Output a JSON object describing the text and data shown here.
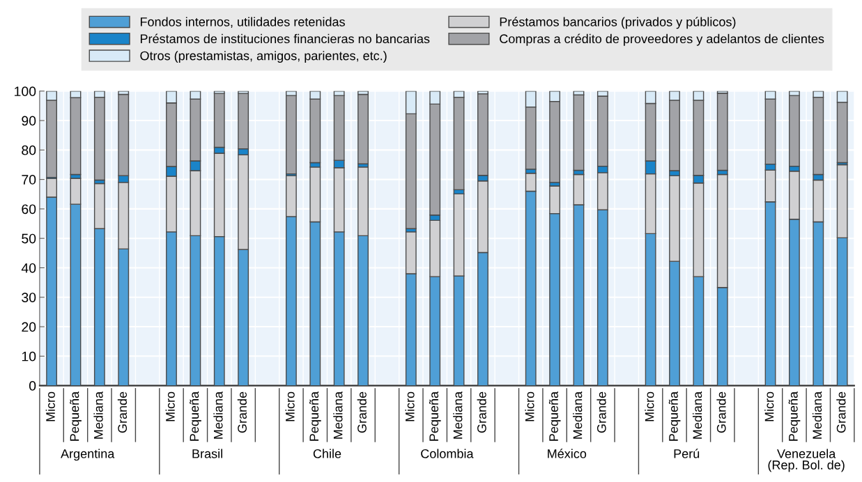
{
  "chart_data": {
    "type": "bar",
    "stacked": true,
    "categories": [
      "Micro",
      "Pequeña",
      "Mediana",
      "Grande",
      null,
      "Micro",
      "Pequeña",
      "Mediana",
      "Grande",
      null,
      "Micro",
      "Pequeña",
      "Mediana",
      "Grande",
      null,
      "Micro",
      "Pequeña",
      "Mediana",
      "Grande",
      null,
      "Micro",
      "Pequeña",
      "Mediana",
      "Grande",
      null,
      "Micro",
      "Pequeña",
      "Mediana",
      "Grande",
      null,
      "Micro",
      "Pequeña",
      "Mediana",
      "Grande"
    ],
    "series": [
      {
        "name": "Fondos internos, utilidades retenidas",
        "color": "#4f9fd6",
        "values": [
          64.0,
          61.6,
          53.3,
          46.4,
          null,
          52.2,
          50.9,
          50.6,
          46.2,
          null,
          57.4,
          55.6,
          52.2,
          50.9,
          null,
          38.0,
          37.0,
          37.2,
          45.2,
          null,
          66.0,
          58.4,
          61.4,
          59.7,
          null,
          51.6,
          42.2,
          37.0,
          33.3,
          null,
          62.4,
          56.5,
          55.6,
          50.2
        ]
      },
      {
        "name": "Préstamos bancarios (privados y públicos)",
        "color": "#d0d0d2",
        "values": [
          6.3,
          8.8,
          15.3,
          22.6,
          null,
          18.9,
          22.1,
          28.3,
          32.2,
          null,
          13.9,
          18.6,
          21.8,
          23.3,
          null,
          14.2,
          19.1,
          27.9,
          24.3,
          null,
          6.1,
          9.4,
          10.3,
          12.6,
          null,
          20.3,
          29.1,
          31.8,
          38.4,
          null,
          10.8,
          16.3,
          14.2,
          24.8
        ]
      },
      {
        "name": "Préstamos de instituciones financieras no bancarias",
        "color": "#1a84c9",
        "values": [
          0.4,
          1.3,
          1.2,
          2.3,
          null,
          3.3,
          3.3,
          2.0,
          2.0,
          null,
          0.6,
          1.5,
          2.5,
          1.1,
          null,
          1.1,
          1.8,
          1.4,
          1.9,
          null,
          1.4,
          1.2,
          1.4,
          2.2,
          null,
          4.4,
          1.7,
          2.6,
          1.4,
          null,
          2.0,
          1.7,
          1.9,
          0.7
        ]
      },
      {
        "name": "Compras a crédito de proveedores y adelantos de clientes",
        "color": "#a2a3a7",
        "values": [
          26.2,
          26.1,
          28.1,
          27.6,
          null,
          21.6,
          21.0,
          18.3,
          18.8,
          null,
          26.6,
          21.6,
          22.0,
          23.6,
          null,
          39.0,
          37.7,
          31.4,
          27.7,
          null,
          21.1,
          27.5,
          25.6,
          23.8,
          null,
          19.5,
          23.9,
          25.5,
          26.2,
          null,
          22.1,
          24.0,
          26.2,
          20.5
        ]
      },
      {
        "name": "Otros (prestamistas, amigos, parientes, etc.)",
        "color": "#d8eaf7",
        "values": [
          3.1,
          2.2,
          2.1,
          1.1,
          null,
          4.0,
          2.7,
          0.8,
          0.8,
          null,
          1.5,
          2.7,
          1.5,
          1.1,
          null,
          7.7,
          4.4,
          2.1,
          0.9,
          null,
          5.4,
          3.5,
          1.3,
          1.7,
          null,
          4.2,
          3.1,
          3.1,
          0.7,
          null,
          2.7,
          1.5,
          2.1,
          3.8
        ]
      }
    ],
    "annotations": [
      "Argentina",
      "Brasil",
      "Chile",
      "Colombia",
      "México",
      "Perú",
      "Venezuela\n(Rep. Bol. de)"
    ],
    "ylim": [
      0,
      100
    ],
    "yticks": [
      0,
      10,
      20,
      30,
      40,
      50,
      60,
      70,
      80,
      90,
      100
    ],
    "grid": "y",
    "legend": "top"
  }
}
